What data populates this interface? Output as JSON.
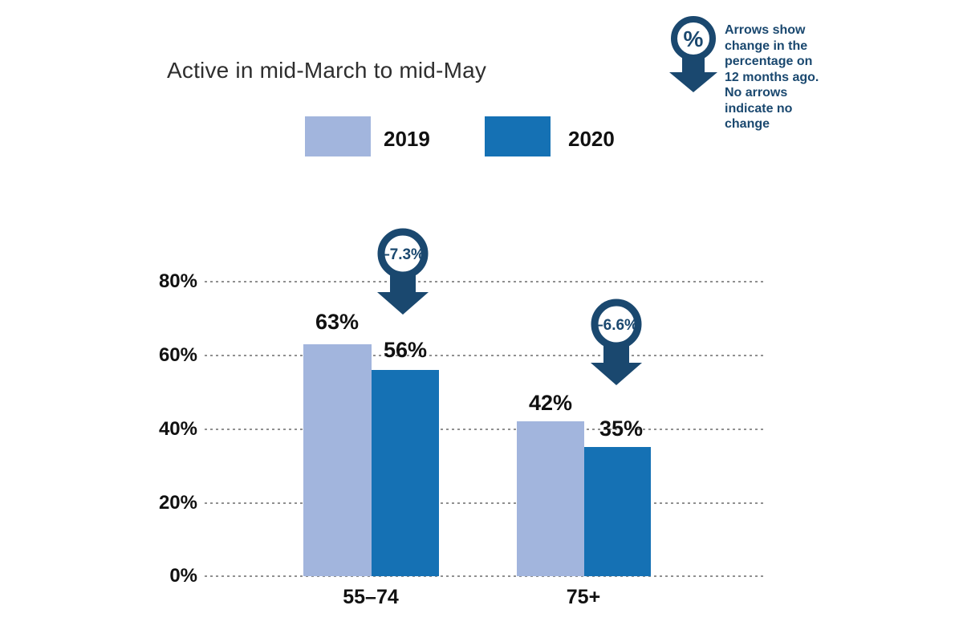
{
  "title": "Active in mid-March to mid-May",
  "legend": {
    "items": [
      {
        "label": "2019",
        "color": "#a2b5dd"
      },
      {
        "label": "2020",
        "color": "#1571b4"
      }
    ]
  },
  "callout": {
    "icon": "percent-arrow-down-icon",
    "symbol": "%",
    "lines": [
      "Arrows show",
      "change in the",
      "percentage on",
      "12 months ago.",
      "No arrows",
      "indicate no",
      "change"
    ]
  },
  "chart_data": {
    "type": "bar",
    "title": "Active in mid-March to mid-May",
    "categories": [
      "55–74",
      "75+"
    ],
    "series": [
      {
        "name": "2019",
        "color": "#a2b5dd",
        "values": [
          63,
          42
        ],
        "labels": [
          "63%",
          "42%"
        ]
      },
      {
        "name": "2020",
        "color": "#1571b4",
        "values": [
          56,
          35
        ],
        "labels": [
          "56%",
          "35%"
        ]
      }
    ],
    "yticks": [
      "80%",
      "60%",
      "40%",
      "20%",
      "0%"
    ],
    "ylim": [
      0,
      80
    ],
    "unit": "%",
    "grid": "horizontal dashed",
    "legend_position": "top",
    "annotations": [
      {
        "label": "–7.3%",
        "category": "55–74",
        "series": "2020"
      },
      {
        "label": "–6.6%",
        "category": "75+",
        "series": "2020"
      }
    ]
  },
  "colors": {
    "navy": "#1a486f",
    "light_blue": "#a2b5dd",
    "dark_blue": "#1571b4",
    "grid": "#909090"
  }
}
